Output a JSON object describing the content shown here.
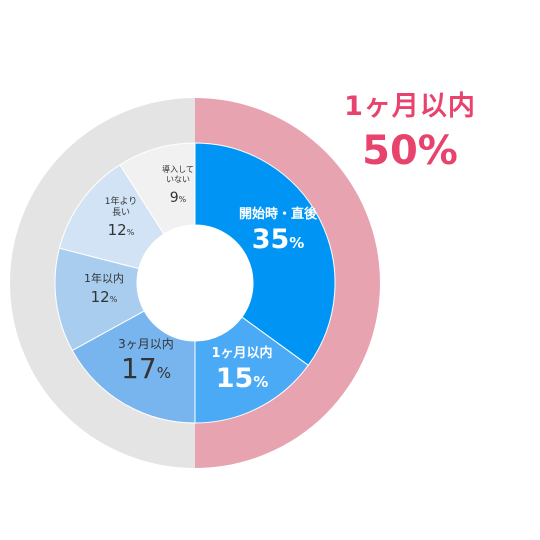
{
  "chart_data": {
    "type": "pie",
    "title": "",
    "inner_ring": [
      {
        "label": "開始時・直後",
        "value": 35,
        "color": "#0095f4",
        "text_color": "#ffffff",
        "bold": true
      },
      {
        "label": "1ヶ月以内",
        "value": 15,
        "color": "#4aaaf5",
        "text_color": "#ffffff",
        "bold": true
      },
      {
        "label": "3ヶ月以内",
        "value": 17,
        "color": "#78b5ee",
        "text_color": "#333333",
        "bold": false
      },
      {
        "label": "1年以内",
        "value": 12,
        "color": "#a9cdee",
        "text_color": "#333333",
        "bold": false
      },
      {
        "label": "1年より長い",
        "value": 12,
        "color": "#d2e3f5",
        "text_color": "#333333",
        "bold": false
      },
      {
        "label": "導入していない",
        "value": 9,
        "color": "#f1f1f1",
        "text_color": "#333333",
        "bold": false
      }
    ],
    "outer_ring": [
      {
        "value": 50,
        "color": "#e8a3b1"
      },
      {
        "value": 50,
        "color": "#e4e4e4"
      }
    ],
    "value_suffix": "%"
  },
  "callout": {
    "label": "1ヶ月以内",
    "value": "50%",
    "color": "#e8436c"
  }
}
